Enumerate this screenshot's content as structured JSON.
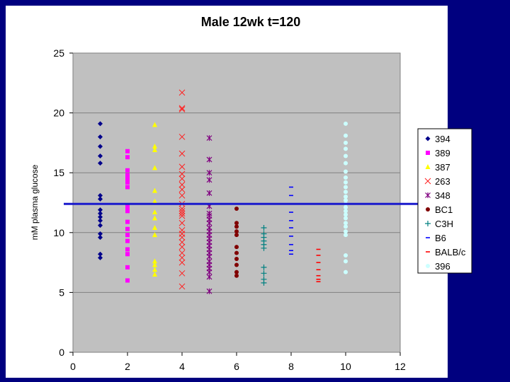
{
  "chart_data": {
    "type": "scatter",
    "title": "Male   12wk t=120",
    "xlabel": "",
    "ylabel": "mM plasma glucose",
    "xlim": [
      0,
      12
    ],
    "ylim": [
      0,
      25
    ],
    "xticks": [
      0,
      2,
      4,
      6,
      8,
      10,
      12
    ],
    "yticks": [
      0,
      5,
      10,
      15,
      20,
      25
    ],
    "grid": "horizontal",
    "legend_position": "right",
    "reference_line": {
      "y": 12.4,
      "color": "#1a1acc"
    },
    "series": [
      {
        "name": "394",
        "color": "#00008b",
        "marker": "diamond",
        "x": 1,
        "values": [
          19.1,
          18.0,
          17.2,
          16.4,
          15.8,
          13.1,
          12.8,
          11.9,
          11.6,
          11.3,
          11.0,
          10.6,
          9.9,
          9.6,
          8.2,
          7.9
        ]
      },
      {
        "name": "389",
        "color": "#ff00ff",
        "marker": "square",
        "x": 2,
        "values": [
          16.8,
          16.3,
          15.2,
          14.8,
          14.5,
          14.2,
          13.8,
          12.2,
          12.0,
          11.8,
          10.9,
          10.3,
          9.8,
          9.3,
          8.6,
          8.2,
          7.1,
          6.0
        ]
      },
      {
        "name": "387",
        "color": "#ffff00",
        "marker": "triangle",
        "x": 3,
        "values": [
          19.0,
          17.2,
          16.9,
          15.4,
          13.5,
          12.6,
          11.7,
          11.2,
          10.4,
          9.8,
          7.6,
          7.3,
          6.9,
          6.5
        ]
      },
      {
        "name": "263",
        "color": "#ff2020",
        "marker": "x",
        "x": 4,
        "values": [
          21.7,
          20.4,
          20.3,
          18.0,
          16.6,
          15.5,
          14.9,
          14.5,
          14.0,
          13.6,
          13.1,
          12.4,
          12.0,
          11.8,
          11.6,
          11.4,
          10.8,
          10.2,
          9.9,
          9.6,
          9.2,
          8.8,
          8.3,
          7.9,
          7.5,
          6.6,
          5.5
        ]
      },
      {
        "name": "348",
        "color": "#800080",
        "marker": "star",
        "x": 5,
        "values": [
          17.9,
          16.1,
          15.0,
          14.4,
          13.3,
          12.2,
          11.6,
          11.4,
          11.1,
          10.8,
          10.4,
          10.1,
          9.8,
          9.5,
          9.2,
          8.9,
          8.6,
          8.3,
          8.0,
          7.6,
          7.3,
          7.0,
          6.7,
          6.3,
          5.1
        ]
      },
      {
        "name": "BC1",
        "color": "#800000",
        "marker": "circle",
        "x": 6,
        "values": [
          12.0,
          10.8,
          10.5,
          10.1,
          9.8,
          8.8,
          8.3,
          7.8,
          7.3,
          6.7,
          6.4
        ]
      },
      {
        "name": "C3H",
        "color": "#008080",
        "marker": "plus",
        "x": 7,
        "values": [
          10.4,
          9.9,
          9.6,
          9.3,
          9.0,
          8.7,
          7.1,
          6.6,
          6.1,
          5.8
        ]
      },
      {
        "name": "B6",
        "color": "#0000ff",
        "marker": "dash",
        "x": 8,
        "values": [
          13.8,
          13.1,
          12.4,
          11.7,
          11.0,
          10.4,
          9.7,
          9.0,
          8.5,
          8.2
        ]
      },
      {
        "name": "BALB/c",
        "color": "#ff0000",
        "marker": "dash",
        "x": 9,
        "values": [
          8.6,
          8.1,
          7.5,
          6.9,
          6.4,
          6.1,
          5.9
        ]
      },
      {
        "name": "396",
        "color": "#ccffff",
        "marker": "circle",
        "x": 10,
        "values": [
          19.1,
          18.1,
          17.5,
          17.0,
          16.4,
          15.8,
          15.1,
          14.6,
          14.2,
          13.8,
          13.4,
          13.0,
          12.7,
          12.4,
          12.1,
          11.8,
          11.5,
          11.2,
          10.8,
          10.5,
          10.1,
          9.8,
          8.1,
          7.6,
          6.7
        ]
      }
    ]
  }
}
